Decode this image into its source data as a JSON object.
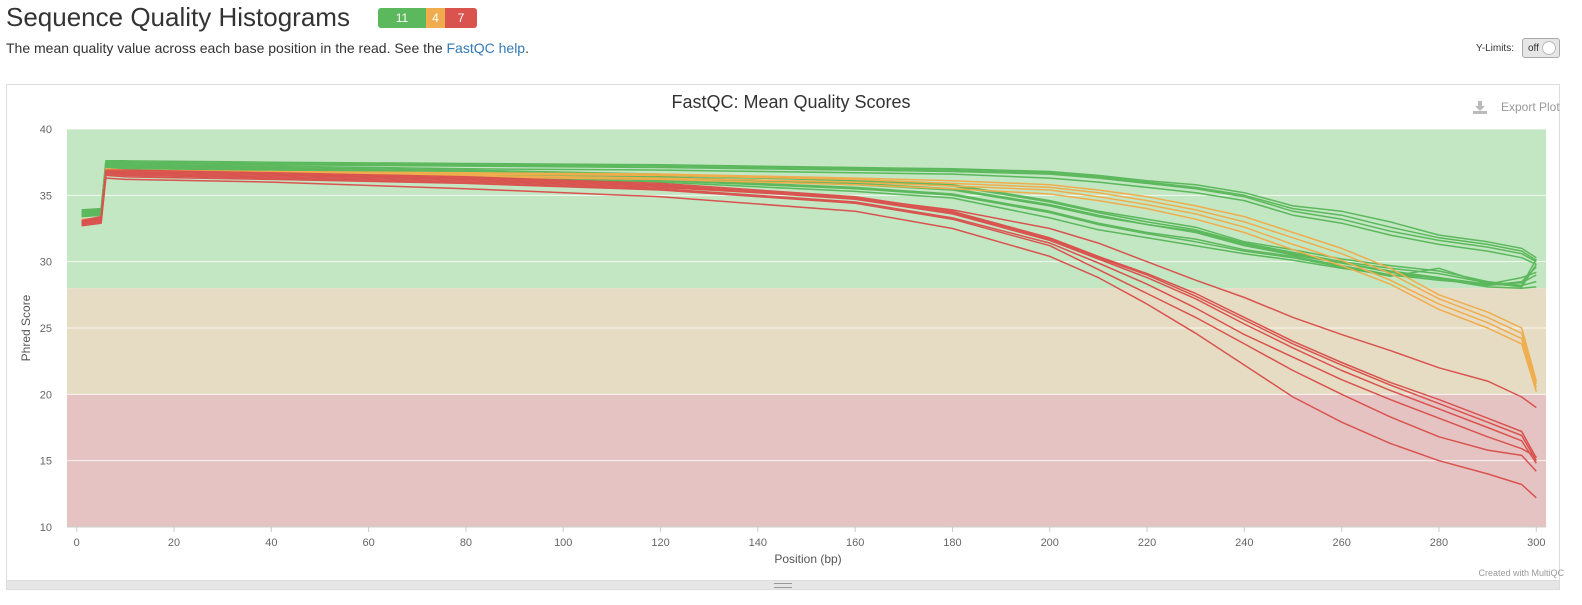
{
  "section": {
    "title": "Sequence Quality Histograms",
    "badges": {
      "pass": "11",
      "warn": "4",
      "fail": "7"
    },
    "description_prefix": "The mean quality value across each base position in the read. See the ",
    "help_link": "FastQC help",
    "description_suffix": ".",
    "ylimits_label": "Y-Limits:",
    "ylimits_value": "off"
  },
  "colors": {
    "pass": "#5cb85c",
    "warn": "#f0ad4e",
    "fail": "#d9534f",
    "zone_good": "#c3e6c3",
    "zone_warn": "#e6dcc3",
    "zone_bad": "#e6c3c3"
  },
  "plot": {
    "export_label": "Export Plot",
    "credit": "Created with MultiQC"
  },
  "chart_data": {
    "type": "line",
    "title": "FastQC: Mean Quality Scores",
    "xlabel": "Position (bp)",
    "ylabel": "Phred Score",
    "xlim": [
      -2,
      302
    ],
    "ylim": [
      10,
      40
    ],
    "xticks": [
      0,
      20,
      40,
      60,
      80,
      100,
      120,
      140,
      160,
      180,
      200,
      220,
      240,
      260,
      280,
      300
    ],
    "yticks": [
      10,
      15,
      20,
      25,
      30,
      35,
      40
    ],
    "bands": [
      {
        "from": 28,
        "to": 40,
        "status": "good"
      },
      {
        "from": 20,
        "to": 28,
        "status": "warn"
      },
      {
        "from": 10,
        "to": 20,
        "status": "bad"
      }
    ],
    "x": [
      1,
      5,
      6,
      10,
      40,
      80,
      120,
      160,
      180,
      200,
      210,
      220,
      230,
      240,
      250,
      260,
      270,
      280,
      290,
      297,
      300
    ],
    "series": [
      {
        "status": "pass",
        "values": [
          33.9,
          34.0,
          37.6,
          37.6,
          37.5,
          37.4,
          37.3,
          37.1,
          37.0,
          36.8,
          36.5,
          36.1,
          35.8,
          35.2,
          34.2,
          33.8,
          33.0,
          32.0,
          31.5,
          31.0,
          30.3
        ]
      },
      {
        "status": "pass",
        "values": [
          33.8,
          33.9,
          37.5,
          37.5,
          37.4,
          37.3,
          37.2,
          37.0,
          36.9,
          36.7,
          36.4,
          36.0,
          35.6,
          35.0,
          34.0,
          33.5,
          32.6,
          31.8,
          31.3,
          30.8,
          30.1
        ]
      },
      {
        "status": "pass",
        "values": [
          33.7,
          33.8,
          37.5,
          37.4,
          37.3,
          37.2,
          37.1,
          36.9,
          36.8,
          36.6,
          36.3,
          35.9,
          35.5,
          34.9,
          33.8,
          33.2,
          32.3,
          31.6,
          31.1,
          30.6,
          30.0
        ]
      },
      {
        "status": "pass",
        "values": [
          33.6,
          33.7,
          37.4,
          37.3,
          37.2,
          37.0,
          36.9,
          36.7,
          36.6,
          36.3,
          36.0,
          35.6,
          35.2,
          34.6,
          33.5,
          32.9,
          32.0,
          31.3,
          30.8,
          30.3,
          29.8
        ]
      },
      {
        "status": "pass",
        "values": [
          33.8,
          33.9,
          37.4,
          37.3,
          37.1,
          36.9,
          36.6,
          36.2,
          35.8,
          34.6,
          33.8,
          33.2,
          32.6,
          31.5,
          30.9,
          30.2,
          29.7,
          29.3,
          28.5,
          28.2,
          30.2
        ]
      },
      {
        "status": "pass",
        "values": [
          33.7,
          33.8,
          37.3,
          37.2,
          37.0,
          36.8,
          36.5,
          36.1,
          35.7,
          34.5,
          33.7,
          33.0,
          32.4,
          31.4,
          30.7,
          30.0,
          29.5,
          29.1,
          28.4,
          28.1,
          29.8
        ]
      },
      {
        "status": "pass",
        "values": [
          33.6,
          33.7,
          37.3,
          37.2,
          37.0,
          36.7,
          36.4,
          35.9,
          35.5,
          34.3,
          33.5,
          32.8,
          32.3,
          31.3,
          30.6,
          29.9,
          29.3,
          28.8,
          28.2,
          28.5,
          29.6
        ]
      },
      {
        "status": "pass",
        "values": [
          33.5,
          33.6,
          37.2,
          37.1,
          36.9,
          36.6,
          36.3,
          35.8,
          35.4,
          34.2,
          33.4,
          32.8,
          32.2,
          31.2,
          30.5,
          29.9,
          29.2,
          28.7,
          28.1,
          28.0,
          28.1
        ]
      },
      {
        "status": "pass",
        "values": [
          33.6,
          33.7,
          37.2,
          37.1,
          36.8,
          36.5,
          36.2,
          35.6,
          35.1,
          33.8,
          32.9,
          32.2,
          31.7,
          30.9,
          30.4,
          29.7,
          29.0,
          28.6,
          28.3,
          28.8,
          29.2
        ]
      },
      {
        "status": "pass",
        "values": [
          33.5,
          33.6,
          37.1,
          37.0,
          36.7,
          36.4,
          36.1,
          35.5,
          35.0,
          33.7,
          32.8,
          32.1,
          31.5,
          30.8,
          30.3,
          29.6,
          28.9,
          29.5,
          28.3,
          28.4,
          29.0
        ]
      },
      {
        "status": "pass",
        "values": [
          33.4,
          33.5,
          37.0,
          36.9,
          36.6,
          36.3,
          36.0,
          35.3,
          34.8,
          33.3,
          32.4,
          31.8,
          31.2,
          30.6,
          30.1,
          29.5,
          29.0,
          28.8,
          28.3,
          28.2,
          28.5
        ]
      },
      {
        "status": "warn",
        "values": [
          33.2,
          33.3,
          37.0,
          36.9,
          36.8,
          36.7,
          36.6,
          36.3,
          36.1,
          35.8,
          35.4,
          34.9,
          34.2,
          33.4,
          32.2,
          31.0,
          29.5,
          27.5,
          26.2,
          25.0,
          21.0
        ]
      },
      {
        "status": "warn",
        "values": [
          33.1,
          33.2,
          36.9,
          36.8,
          36.7,
          36.6,
          36.5,
          36.2,
          35.9,
          35.6,
          35.2,
          34.6,
          33.9,
          33.0,
          31.8,
          30.6,
          29.1,
          27.2,
          25.8,
          24.6,
          20.8
        ]
      },
      {
        "status": "warn",
        "values": [
          33.0,
          33.1,
          36.8,
          36.7,
          36.6,
          36.5,
          36.3,
          36.0,
          35.7,
          35.4,
          34.9,
          34.3,
          33.6,
          32.6,
          31.3,
          30.1,
          28.6,
          26.8,
          25.4,
          24.2,
          20.5
        ]
      },
      {
        "status": "warn",
        "values": [
          33.0,
          33.0,
          36.8,
          36.7,
          36.5,
          36.4,
          36.2,
          35.8,
          35.5,
          35.1,
          34.6,
          34.0,
          33.2,
          32.2,
          30.9,
          29.7,
          28.3,
          26.4,
          25.0,
          23.8,
          20.2
        ]
      },
      {
        "status": "fail",
        "values": [
          33.1,
          33.4,
          36.9,
          36.9,
          36.7,
          36.4,
          35.9,
          34.9,
          33.8,
          31.8,
          30.4,
          29.1,
          27.6,
          25.8,
          24.0,
          22.4,
          20.9,
          19.6,
          18.2,
          17.2,
          15.2
        ]
      },
      {
        "status": "fail",
        "values": [
          33.0,
          33.3,
          36.8,
          36.8,
          36.6,
          36.3,
          35.8,
          34.8,
          33.7,
          31.7,
          30.3,
          29.0,
          27.4,
          25.6,
          23.8,
          22.2,
          20.7,
          19.3,
          17.9,
          16.9,
          15.0
        ]
      },
      {
        "status": "fail",
        "values": [
          32.9,
          33.2,
          36.7,
          36.7,
          36.5,
          36.2,
          35.7,
          34.7,
          33.6,
          31.6,
          30.2,
          28.8,
          27.2,
          25.3,
          23.5,
          21.8,
          20.3,
          18.9,
          17.5,
          16.5,
          14.8
        ]
      },
      {
        "status": "fail",
        "values": [
          32.8,
          33.0,
          36.5,
          36.4,
          36.2,
          35.9,
          35.4,
          34.4,
          33.2,
          31.2,
          29.4,
          27.6,
          25.8,
          23.8,
          21.8,
          20.0,
          18.3,
          16.8,
          15.8,
          15.4,
          14.2
        ]
      },
      {
        "status": "fail",
        "values": [
          32.7,
          32.9,
          36.3,
          36.2,
          36.0,
          35.5,
          34.9,
          33.8,
          32.5,
          30.4,
          28.8,
          26.8,
          24.6,
          22.2,
          19.8,
          17.9,
          16.3,
          15.0,
          14.0,
          13.2,
          12.2
        ]
      },
      {
        "status": "fail",
        "values": [
          33.0,
          33.2,
          36.7,
          36.6,
          36.4,
          36.1,
          35.6,
          34.8,
          33.9,
          32.5,
          31.4,
          30.0,
          28.6,
          27.3,
          25.8,
          24.5,
          23.3,
          22.0,
          21.0,
          19.8,
          19.0
        ]
      },
      {
        "status": "fail",
        "values": [
          32.9,
          33.1,
          36.6,
          36.5,
          36.3,
          36.0,
          35.5,
          34.5,
          33.3,
          31.4,
          29.9,
          28.3,
          26.5,
          24.5,
          22.8,
          21.1,
          19.6,
          18.2,
          16.8,
          15.9,
          15.3
        ]
      }
    ]
  }
}
